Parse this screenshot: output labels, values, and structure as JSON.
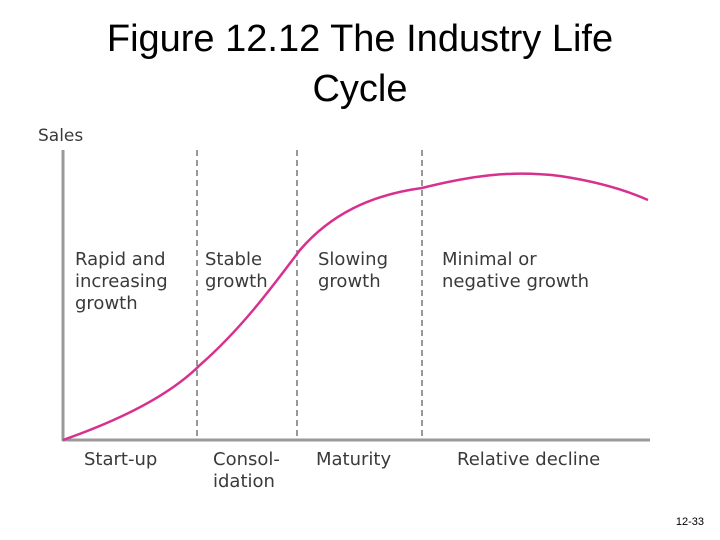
{
  "title": "Figure 12.12 The Industry Life Cycle",
  "y_axis_label": "Sales",
  "stages": [
    {
      "growth": [
        "Rapid and",
        "increasing",
        "growth"
      ],
      "phase": [
        "Start-up"
      ]
    },
    {
      "growth": [
        "Stable",
        "growth"
      ],
      "phase": [
        "Consol-",
        "idation"
      ]
    },
    {
      "growth": [
        "Slowing",
        "growth"
      ],
      "phase": [
        "Maturity"
      ]
    },
    {
      "growth": [
        "Minimal or",
        "negative growth"
      ],
      "phase": [
        "Relative decline"
      ]
    }
  ],
  "footer": "12-33"
}
